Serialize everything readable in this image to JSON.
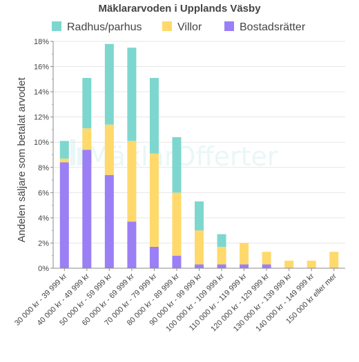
{
  "chart_data": {
    "type": "bar",
    "stacked": true,
    "title": "Mäklararvoden i Upplands Väsby",
    "ylabel": "Andelen säljare som betalat arvodet",
    "xlabel": "",
    "ylim": [
      0,
      18
    ],
    "y_ticks": [
      0,
      2,
      4,
      6,
      8,
      10,
      12,
      14,
      16,
      18
    ],
    "y_tick_suffix": "%",
    "grid": "horizontal",
    "legend_position": "top",
    "categories": [
      "30 000 kr - 39 999 kr",
      "40 000 kr - 49 999 kr",
      "50 000 kr - 59 999 kr",
      "60 000 kr - 69 999 kr",
      "70 000 kr - 79 999 kr",
      "80 000 kr - 89 999 kr",
      "90 000 kr - 99 999 kr",
      "100 000 kr - 109 999 kr",
      "110 000 kr - 119 999 kr",
      "120 000 kr - 129 999 kr",
      "130 000 kr - 139 999 kr",
      "140 000 kr - 149 999 kr",
      "150 000 kr eller mer"
    ],
    "series": [
      {
        "name": "Bostadsrätter",
        "color": "#9b7ff5",
        "values": [
          8.4,
          9.4,
          7.4,
          3.7,
          1.7,
          1.0,
          0.3,
          0.3,
          0.3,
          0.3,
          0.0,
          0.0,
          0.0
        ]
      },
      {
        "name": "Villor",
        "color": "#ffd96b",
        "values": [
          0.3,
          1.7,
          4.0,
          6.4,
          7.4,
          5.0,
          2.7,
          1.4,
          1.7,
          1.0,
          0.6,
          0.6,
          1.3
        ]
      },
      {
        "name": "Radhus/parhus",
        "color": "#7dd7cf",
        "values": [
          1.4,
          4.0,
          6.4,
          7.4,
          6.0,
          4.4,
          2.3,
          1.0,
          0.0,
          0.0,
          0.0,
          0.0,
          0.0
        ]
      }
    ],
    "legend_order": [
      "Radhus/parhus",
      "Villor",
      "Bostadsrätter"
    ],
    "watermark": "MäklarOfferter"
  }
}
